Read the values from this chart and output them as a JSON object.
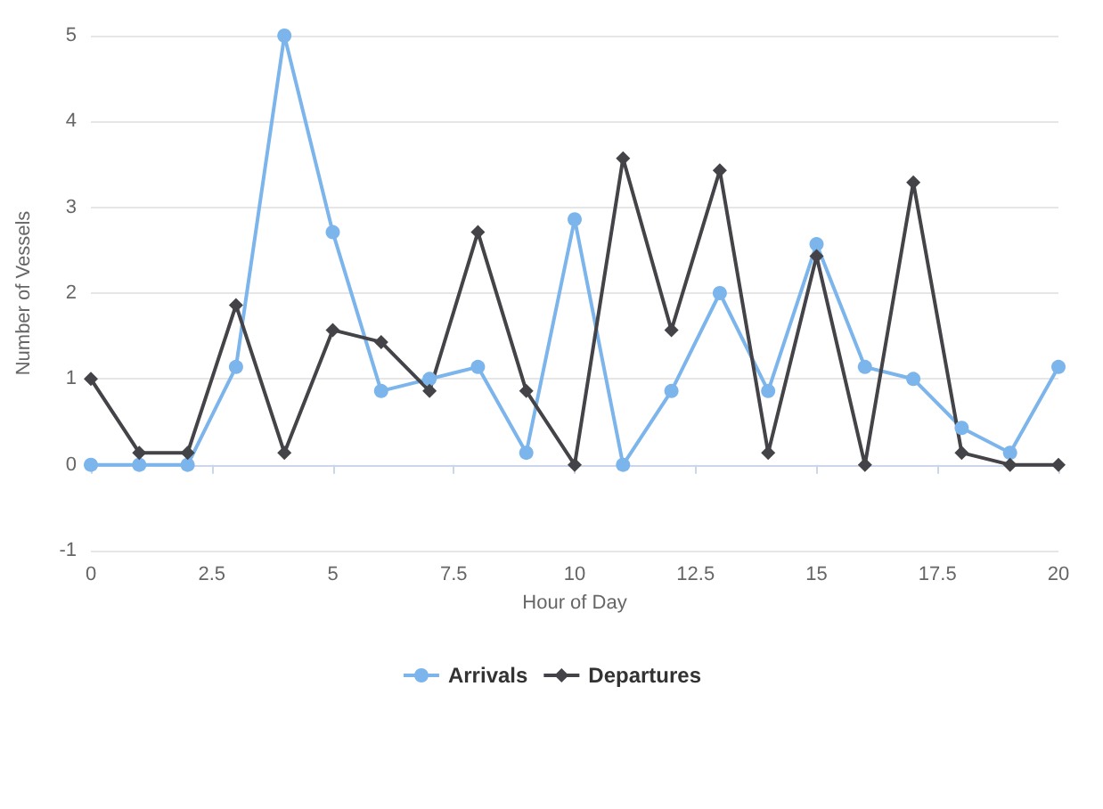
{
  "chart_data": {
    "type": "line",
    "xlabel": "Hour of Day",
    "ylabel": "Number of Vessels",
    "x": [
      0,
      1,
      2,
      3,
      4,
      5,
      6,
      7,
      8,
      9,
      10,
      11,
      12,
      13,
      14,
      15,
      16,
      17,
      18,
      19,
      20
    ],
    "series": [
      {
        "name": "Arrivals",
        "color": "#7cb5ec",
        "marker": "circle",
        "values": [
          0,
          0,
          0,
          1.14,
          5,
          2.71,
          0.86,
          1,
          1.14,
          0.14,
          2.86,
          0,
          0.86,
          2,
          0.86,
          2.57,
          1.14,
          1,
          0.43,
          0.14,
          1.14
        ]
      },
      {
        "name": "Departures",
        "color": "#434348",
        "marker": "diamond",
        "values": [
          1,
          0.14,
          0.14,
          1.86,
          0.14,
          1.57,
          1.43,
          0.86,
          2.71,
          0.86,
          0,
          3.57,
          1.57,
          3.43,
          0.14,
          2.43,
          0,
          3.29,
          0.14,
          0,
          0
        ]
      }
    ],
    "xlim": [
      0,
      20
    ],
    "xticks": [
      0,
      2.5,
      5,
      7.5,
      10,
      12.5,
      15,
      17.5,
      20
    ],
    "ylim": [
      -1,
      5
    ],
    "yticks": [
      -1,
      0,
      1,
      2,
      3,
      4,
      5
    ],
    "grid": "y",
    "legend": "bottom"
  }
}
